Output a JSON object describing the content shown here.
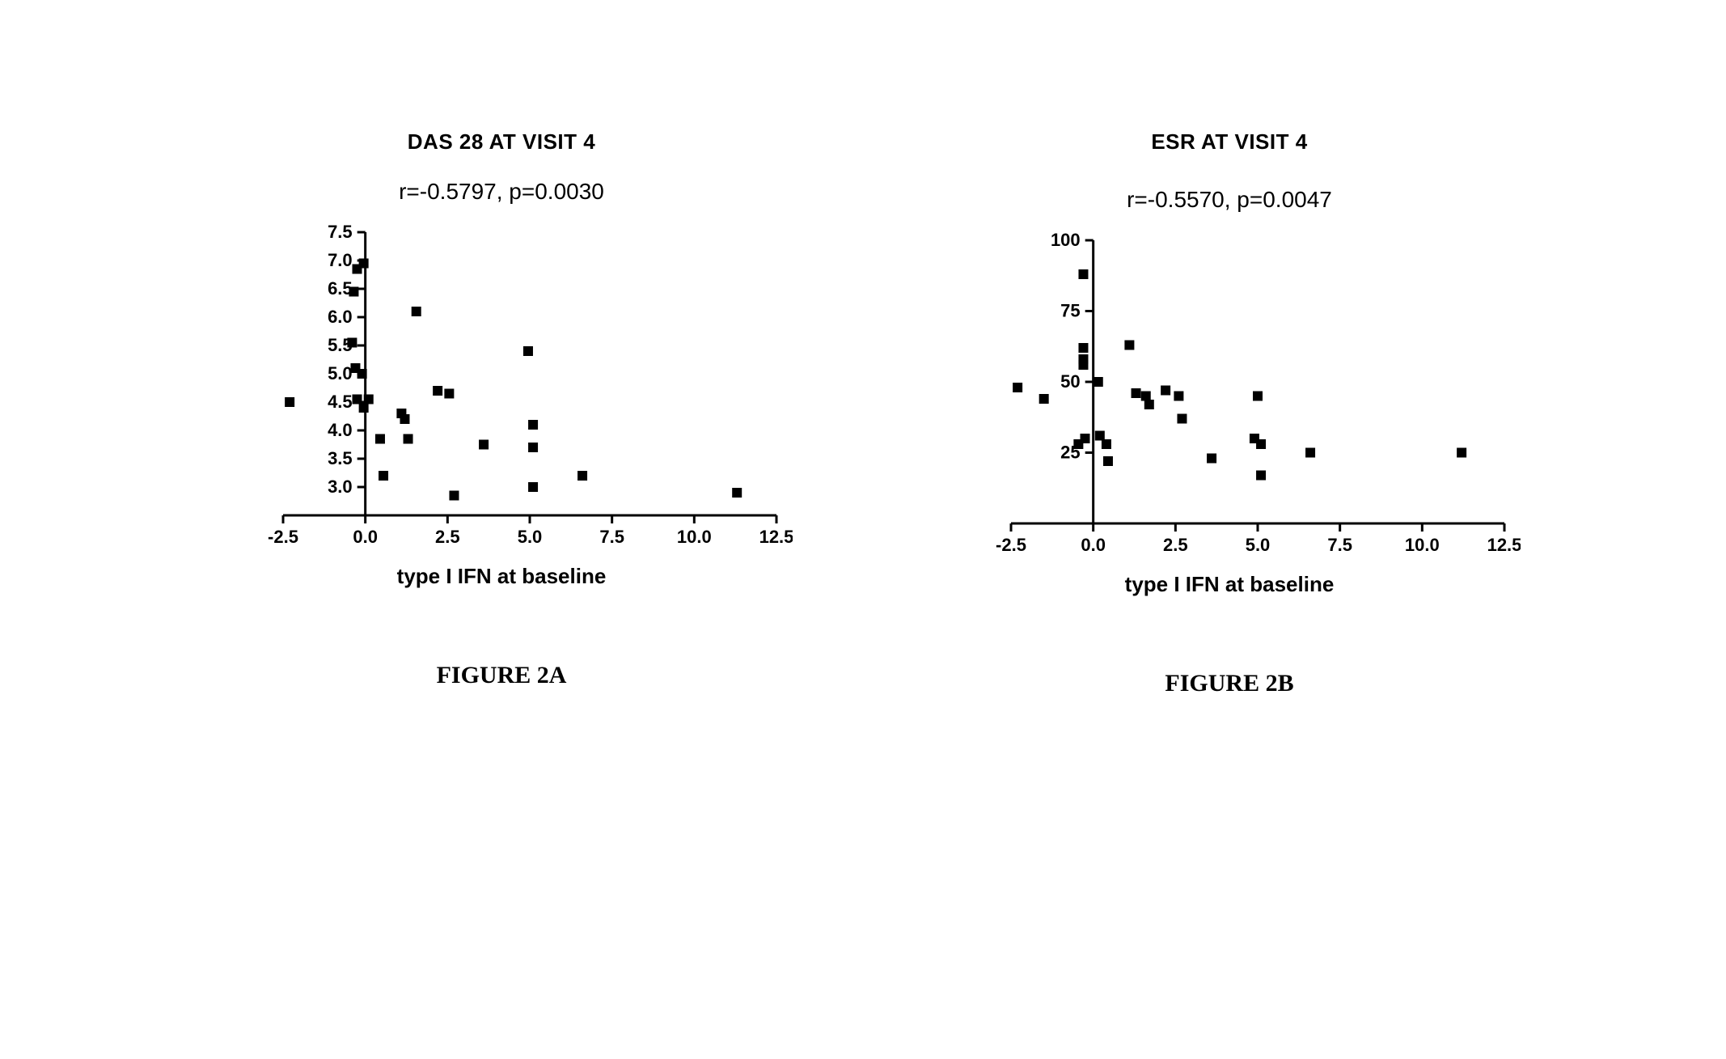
{
  "background_color": "#ffffff",
  "text_color": "#000000",
  "marker": {
    "shape": "square",
    "size": 12,
    "fill": "#000000"
  },
  "axis": {
    "stroke": "#000000",
    "width": 3,
    "major_tick_len": 10,
    "minor_tick_len": 6
  },
  "tick_label_fontsize": 22,
  "axis_label_fontsize": 26,
  "panelA": {
    "title": "DAS 28 AT VISIT 4",
    "title_fontsize": 26,
    "subtitle": "r=-0.5797, p=0.0030",
    "subtitle_fontsize": 28,
    "xlabel": "type I IFN at baseline",
    "caption": "FIGURE 2A",
    "caption_fontsize": 30,
    "xlim": [
      -2.5,
      12.5
    ],
    "ylim": [
      2.5,
      7.5
    ],
    "xticks": [
      -2.5,
      0.0,
      2.5,
      5.0,
      7.5,
      10.0,
      12.5
    ],
    "yticks": [
      3.0,
      3.5,
      4.0,
      4.5,
      5.0,
      5.5,
      6.0,
      6.5,
      7.0,
      7.5
    ],
    "ytick_labels": [
      "3.0",
      "3.5",
      "4.0",
      "4.5",
      "5.0",
      "5.5",
      "6.0",
      "6.5",
      "7.0",
      "7.5"
    ],
    "y_axis_at_x": 0.0,
    "x_axis_at_y": 2.5,
    "points": [
      {
        "x": -2.3,
        "y": 4.5
      },
      {
        "x": -0.25,
        "y": 6.85
      },
      {
        "x": -0.05,
        "y": 6.95
      },
      {
        "x": -0.35,
        "y": 6.45
      },
      {
        "x": -0.4,
        "y": 5.55
      },
      {
        "x": -0.3,
        "y": 5.1
      },
      {
        "x": -0.1,
        "y": 5.0
      },
      {
        "x": -0.25,
        "y": 4.55
      },
      {
        "x": -0.05,
        "y": 4.4
      },
      {
        "x": 0.1,
        "y": 4.55
      },
      {
        "x": 0.45,
        "y": 3.85
      },
      {
        "x": 0.55,
        "y": 3.2
      },
      {
        "x": 1.1,
        "y": 4.3
      },
      {
        "x": 1.2,
        "y": 4.2
      },
      {
        "x": 1.3,
        "y": 3.85
      },
      {
        "x": 1.55,
        "y": 6.1
      },
      {
        "x": 2.2,
        "y": 4.7
      },
      {
        "x": 2.55,
        "y": 4.65
      },
      {
        "x": 2.7,
        "y": 2.85
      },
      {
        "x": 3.6,
        "y": 3.75
      },
      {
        "x": 4.95,
        "y": 5.4
      },
      {
        "x": 5.1,
        "y": 4.1
      },
      {
        "x": 5.1,
        "y": 3.7
      },
      {
        "x": 5.1,
        "y": 3.0
      },
      {
        "x": 6.6,
        "y": 3.2
      },
      {
        "x": 11.3,
        "y": 2.9
      }
    ]
  },
  "panelB": {
    "title": "ESR AT VISIT 4",
    "title_fontsize": 26,
    "subtitle": "r=-0.5570, p=0.0047",
    "subtitle_fontsize": 28,
    "xlabel": "type I IFN at baseline",
    "caption": "FIGURE 2B",
    "caption_fontsize": 30,
    "xlim": [
      -2.5,
      12.5
    ],
    "ylim": [
      0,
      100
    ],
    "xticks": [
      -2.5,
      0.0,
      2.5,
      5.0,
      7.5,
      10.0,
      12.5
    ],
    "yticks": [
      25,
      50,
      75,
      100
    ],
    "ytick_labels": [
      "25",
      "50",
      "75",
      "100"
    ],
    "y_axis_at_x": 0.0,
    "x_axis_at_y": 0.0,
    "points": [
      {
        "x": -2.3,
        "y": 48
      },
      {
        "x": -1.5,
        "y": 44
      },
      {
        "x": -0.3,
        "y": 88
      },
      {
        "x": -0.3,
        "y": 62
      },
      {
        "x": -0.3,
        "y": 58
      },
      {
        "x": -0.3,
        "y": 56
      },
      {
        "x": -0.25,
        "y": 30
      },
      {
        "x": -0.45,
        "y": 28
      },
      {
        "x": 0.15,
        "y": 50
      },
      {
        "x": 0.2,
        "y": 31
      },
      {
        "x": 0.4,
        "y": 28
      },
      {
        "x": 0.45,
        "y": 22
      },
      {
        "x": 1.1,
        "y": 63
      },
      {
        "x": 1.3,
        "y": 46
      },
      {
        "x": 1.6,
        "y": 45
      },
      {
        "x": 1.7,
        "y": 42
      },
      {
        "x": 2.2,
        "y": 47
      },
      {
        "x": 2.6,
        "y": 45
      },
      {
        "x": 2.7,
        "y": 37
      },
      {
        "x": 3.6,
        "y": 23
      },
      {
        "x": 5.0,
        "y": 45
      },
      {
        "x": 4.9,
        "y": 30
      },
      {
        "x": 5.1,
        "y": 28
      },
      {
        "x": 5.1,
        "y": 17
      },
      {
        "x": 6.6,
        "y": 25
      },
      {
        "x": 11.2,
        "y": 25
      }
    ]
  }
}
